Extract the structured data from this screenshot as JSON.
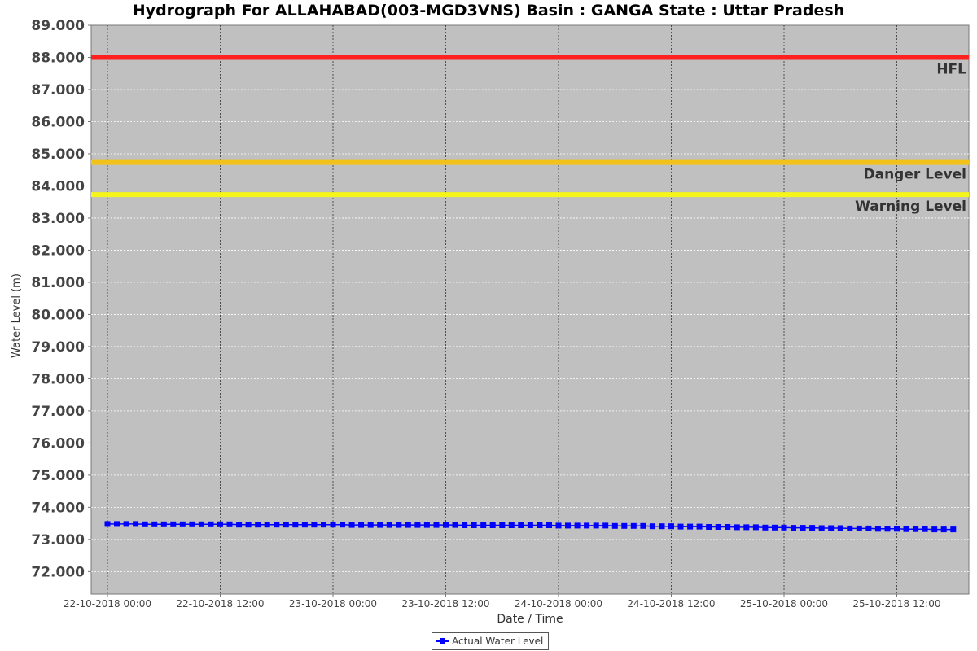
{
  "chart_data": {
    "type": "line",
    "title": "Hydrograph For  ALLAHABAD(003-MGD3VNS) Basin : GANGA State : Uttar Pradesh",
    "xlabel": "Date / Time",
    "ylabel": "Water Level (m)",
    "ylim": [
      71.3,
      89.0
    ],
    "yticks": [
      "72.000",
      "73.000",
      "74.000",
      "75.000",
      "76.000",
      "77.000",
      "78.000",
      "79.000",
      "80.000",
      "81.000",
      "82.000",
      "83.000",
      "84.000",
      "85.000",
      "86.000",
      "87.000",
      "88.000",
      "89.000"
    ],
    "x_range": [
      "22-10-2018 00:00",
      "25-10-2018 21:00"
    ],
    "xticks": [
      "22-10-2018 00:00",
      "22-10-2018 12:00",
      "23-10-2018 00:00",
      "23-10-2018 12:00",
      "24-10-2018 00:00",
      "24-10-2018 12:00",
      "25-10-2018 00:00",
      "25-10-2018 12:00"
    ],
    "grid": true,
    "legend_position": "bottom-center",
    "reference_lines": [
      {
        "label": "HFL",
        "value": 88.0,
        "color": "#ff2020"
      },
      {
        "label": "Danger Level",
        "value": 84.73,
        "color": "#f2c21b"
      },
      {
        "label": "Warning Level",
        "value": 83.73,
        "color": "#f5f51a"
      }
    ],
    "series": [
      {
        "name": "Actual Water Level",
        "color": "#0000ff",
        "start": "22-10-2018 00:00",
        "interval_hours": 1,
        "values": [
          73.48,
          73.48,
          73.48,
          73.48,
          73.47,
          73.47,
          73.47,
          73.47,
          73.47,
          73.47,
          73.47,
          73.47,
          73.47,
          73.47,
          73.46,
          73.46,
          73.46,
          73.46,
          73.46,
          73.46,
          73.46,
          73.46,
          73.46,
          73.46,
          73.46,
          73.46,
          73.45,
          73.45,
          73.45,
          73.45,
          73.45,
          73.45,
          73.45,
          73.45,
          73.45,
          73.45,
          73.45,
          73.45,
          73.44,
          73.44,
          73.44,
          73.44,
          73.44,
          73.44,
          73.44,
          73.44,
          73.44,
          73.44,
          73.43,
          73.43,
          73.43,
          73.43,
          73.43,
          73.43,
          73.42,
          73.42,
          73.42,
          73.42,
          73.41,
          73.41,
          73.41,
          73.4,
          73.4,
          73.4,
          73.39,
          73.39,
          73.39,
          73.38,
          73.38,
          73.38,
          73.37,
          73.37,
          73.37,
          73.36,
          73.36,
          73.36,
          73.35,
          73.35,
          73.35,
          73.34,
          73.34,
          73.34,
          73.33,
          73.33,
          73.33,
          73.32,
          73.32,
          73.32,
          73.31,
          73.31,
          73.31
        ]
      }
    ]
  },
  "legend": {
    "label": "Actual Water Level"
  }
}
